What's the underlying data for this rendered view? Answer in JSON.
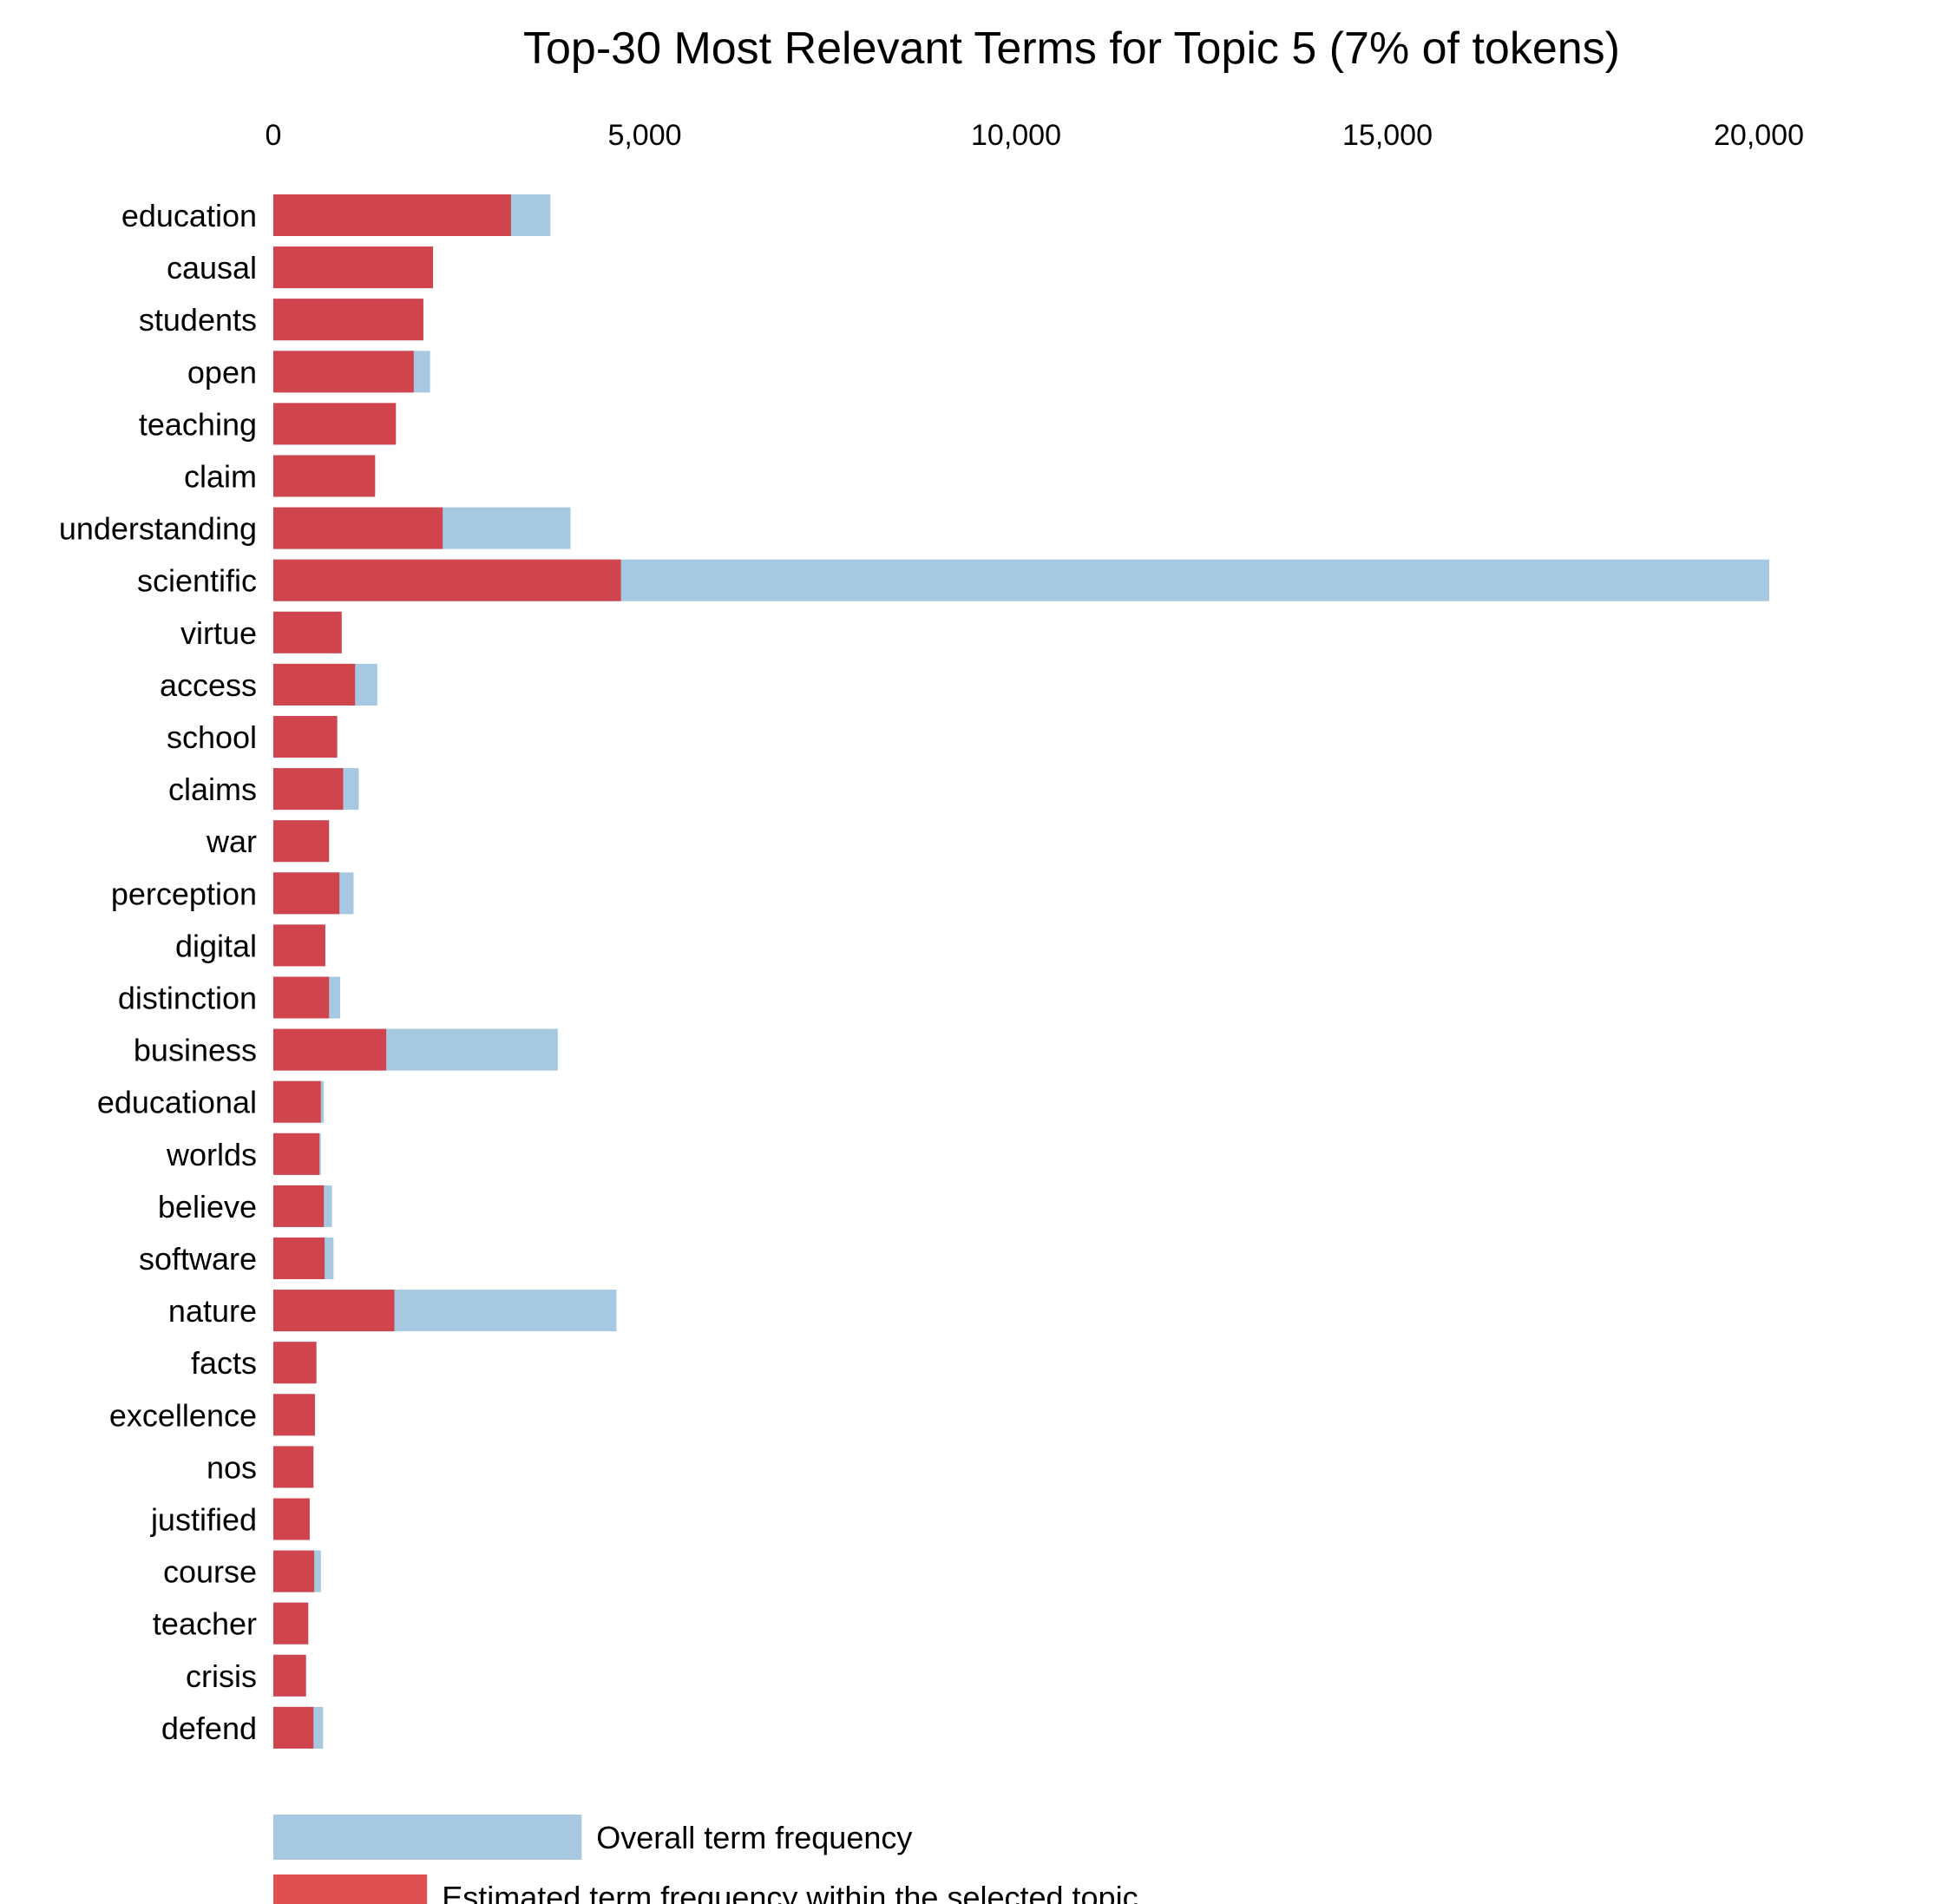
{
  "chart_data": {
    "type": "bar",
    "orientation": "horizontal",
    "stacked": false,
    "overlay": true,
    "title": "Top-30 Most Relevant Terms for Topic 5 (7% of tokens)",
    "xlabel": "",
    "ylabel": "",
    "xlim": [
      0,
      20800
    ],
    "xticks": [
      0,
      5000,
      10000,
      15000,
      20000
    ],
    "xtick_labels": [
      "0",
      "5,000",
      "10,000",
      "15,000",
      "20,000"
    ],
    "xaxis_position": "top",
    "grid": false,
    "legend_position": "bottom",
    "categories": [
      "education",
      "causal",
      "students",
      "open",
      "teaching",
      "claim",
      "understanding",
      "scientific",
      "virtue",
      "access",
      "school",
      "claims",
      "war",
      "perception",
      "digital",
      "distinction",
      "business",
      "educational",
      "worlds",
      "believe",
      "software",
      "nature",
      "facts",
      "excellence",
      "nos",
      "justified",
      "course",
      "teacher",
      "crisis",
      "defend"
    ],
    "series": [
      {
        "name": "Overall term frequency",
        "color": "#a6c8e0",
        "values": [
          3730,
          2150,
          2020,
          2110,
          1650,
          1370,
          4000,
          20140,
          920,
          1400,
          860,
          1150,
          750,
          1080,
          700,
          900,
          3830,
          680,
          640,
          790,
          810,
          4620,
          580,
          560,
          540,
          490,
          640,
          470,
          440,
          670
        ]
      },
      {
        "name": "Estimated term frequency within the selected topic",
        "color": "#d0444e",
        "legend_color": "#e05052",
        "values": [
          3200,
          2150,
          2020,
          1890,
          1650,
          1370,
          2280,
          4680,
          920,
          1100,
          860,
          940,
          750,
          890,
          700,
          750,
          1520,
          640,
          620,
          680,
          690,
          1630,
          580,
          560,
          540,
          490,
          550,
          470,
          440,
          540
        ]
      }
    ],
    "legend": [
      {
        "label": "Overall term frequency",
        "color": "#a6c8e0",
        "swatch_value": 4150
      },
      {
        "label": "Estimated term frequency within the selected topic",
        "color": "#e05052",
        "swatch_value": 2070
      }
    ]
  }
}
